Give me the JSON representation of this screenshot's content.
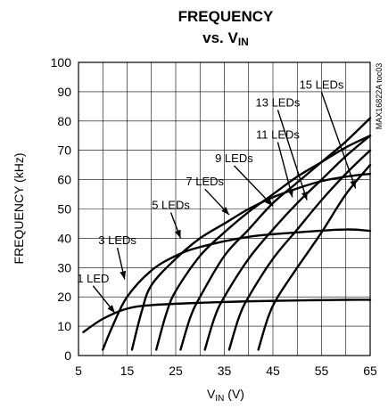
{
  "chart_data": {
    "type": "line",
    "title": "FREQUENCY",
    "subtitle": "vs. VIN",
    "xlabel": "VIN (V)",
    "ylabel": "FREQUENCY (kHz)",
    "xlim": [
      5,
      65
    ],
    "ylim": [
      0,
      100
    ],
    "xticks": [
      "5",
      "15",
      "25",
      "35",
      "45",
      "55",
      "65"
    ],
    "yticks": [
      "0",
      "10",
      "20",
      "30",
      "40",
      "50",
      "60",
      "70",
      "80",
      "90",
      "100"
    ],
    "grid": true,
    "watermark": "MAX16822A toc03",
    "series": [
      {
        "name": "1 LED",
        "x": [
          6,
          10,
          15,
          20,
          30,
          40,
          50,
          60,
          65
        ],
        "y": [
          8,
          12.5,
          16,
          17.2,
          18,
          18.5,
          18.8,
          19,
          19
        ]
      },
      {
        "name": "3 LEDs",
        "x": [
          10,
          12,
          15,
          20,
          25,
          30,
          40,
          50,
          60,
          65
        ],
        "y": [
          2,
          10,
          20,
          29,
          34,
          37,
          40.5,
          42,
          43,
          42.5
        ]
      },
      {
        "name": "5 LEDs",
        "x": [
          16,
          18,
          20,
          25,
          30,
          35,
          40,
          45,
          50,
          55,
          60,
          65
        ],
        "y": [
          2,
          15,
          24,
          33,
          40,
          45,
          50,
          54,
          57,
          59.5,
          61,
          62
        ]
      },
      {
        "name": "7 LEDs",
        "x": [
          21,
          23,
          25,
          30,
          35,
          40,
          45,
          50,
          55,
          60,
          65
        ],
        "y": [
          2,
          14,
          22,
          34,
          42,
          49,
          55,
          61,
          66,
          71,
          75
        ]
      },
      {
        "name": "9 LEDs",
        "x": [
          26,
          28,
          30,
          35,
          40,
          45,
          50,
          55,
          60,
          65
        ],
        "y": [
          2,
          13,
          20,
          34,
          43,
          52,
          59,
          66,
          73,
          81
        ]
      },
      {
        "name": "11 LEDs",
        "x": [
          31,
          33,
          35,
          40,
          45,
          50,
          55,
          60,
          65
        ],
        "y": [
          2,
          13,
          20,
          33,
          43,
          52,
          60,
          68,
          75
        ]
      },
      {
        "name": "13 LEDs",
        "x": [
          36,
          38,
          40,
          45,
          50,
          55,
          60,
          65
        ],
        "y": [
          2,
          13,
          20,
          33,
          43,
          53,
          62,
          70
        ]
      },
      {
        "name": "15 LEDs",
        "x": [
          42,
          44,
          46,
          50,
          55,
          60,
          65
        ],
        "y": [
          2,
          13,
          20,
          30,
          42,
          55,
          65
        ]
      }
    ],
    "annotations": [
      {
        "series": "1 LED",
        "label_x": 8,
        "label_y": 25,
        "arrow_x": 12.5,
        "arrow_y": 14.5
      },
      {
        "series": "3 LEDs",
        "label_x": 13,
        "label_y": 38,
        "arrow_x": 14.5,
        "arrow_y": 26
      },
      {
        "series": "5 LEDs",
        "label_x": 24,
        "label_y": 50,
        "arrow_x": 26,
        "arrow_y": 40
      },
      {
        "series": "7 LEDs",
        "label_x": 31,
        "label_y": 58,
        "arrow_x": 36,
        "arrow_y": 48
      },
      {
        "series": "9 LEDs",
        "label_x": 37,
        "label_y": 66,
        "arrow_x": 45,
        "arrow_y": 51
      },
      {
        "series": "11 LEDs",
        "label_x": 46,
        "label_y": 74,
        "arrow_x": 49,
        "arrow_y": 54
      },
      {
        "series": "13 LEDs",
        "label_x": 46,
        "label_y": 85,
        "arrow_x": 52,
        "arrow_y": 53
      },
      {
        "series": "15 LEDs",
        "label_x": 55,
        "label_y": 91,
        "arrow_x": 62,
        "arrow_y": 57
      }
    ]
  }
}
